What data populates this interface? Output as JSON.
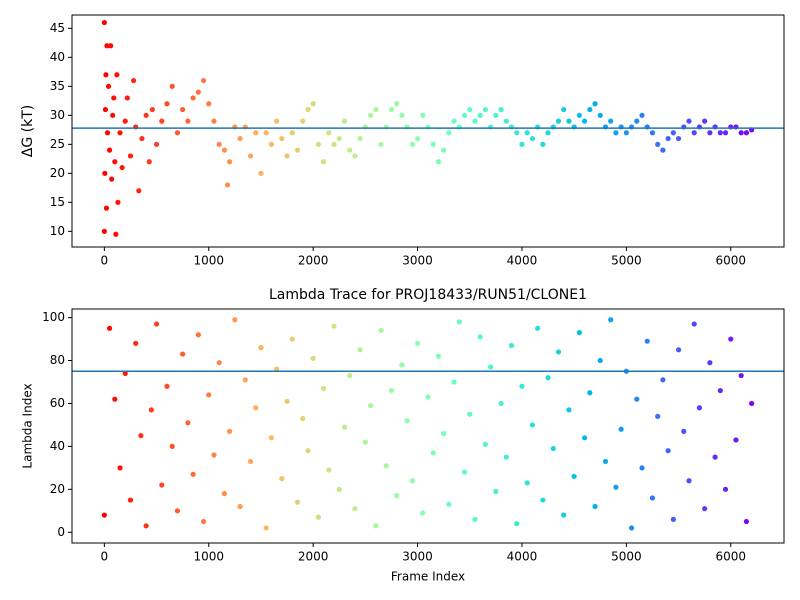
{
  "chart_data": [
    {
      "type": "scatter",
      "ylabel": "ΔG (kT)",
      "colormap": "rainbow_r",
      "hline": 27.8,
      "hline_color": "#1f77b4",
      "xlim": [
        -310,
        6510
      ],
      "ylim": [
        7.3,
        47.3
      ],
      "xticks": [
        0,
        1000,
        2000,
        3000,
        4000,
        5000,
        6000
      ],
      "yticks": [
        10,
        15,
        20,
        25,
        30,
        35,
        40,
        45
      ],
      "x": [
        0,
        0,
        5,
        10,
        15,
        20,
        25,
        30,
        40,
        50,
        60,
        70,
        80,
        90,
        100,
        110,
        120,
        130,
        150,
        170,
        200,
        220,
        250,
        280,
        300,
        330,
        360,
        400,
        430,
        460,
        500,
        550,
        600,
        650,
        700,
        750,
        800,
        850,
        900,
        950,
        1000,
        1050,
        1100,
        1150,
        1180,
        1200,
        1250,
        1300,
        1350,
        1400,
        1450,
        1500,
        1550,
        1600,
        1650,
        1700,
        1750,
        1800,
        1850,
        1900,
        1950,
        2000,
        2050,
        2100,
        2150,
        2200,
        2250,
        2300,
        2350,
        2400,
        2450,
        2500,
        2550,
        2600,
        2650,
        2700,
        2750,
        2800,
        2850,
        2900,
        2950,
        3000,
        3050,
        3100,
        3150,
        3200,
        3250,
        3300,
        3350,
        3400,
        3450,
        3500,
        3550,
        3600,
        3650,
        3700,
        3750,
        3800,
        3850,
        3900,
        3950,
        4000,
        4050,
        4100,
        4150,
        4200,
        4250,
        4300,
        4350,
        4400,
        4450,
        4500,
        4550,
        4600,
        4650,
        4700,
        4750,
        4800,
        4850,
        4900,
        4950,
        5000,
        5050,
        5100,
        5150,
        5200,
        5250,
        5300,
        5350,
        5400,
        5450,
        5500,
        5550,
        5600,
        5650,
        5700,
        5750,
        5800,
        5850,
        5900,
        5950,
        6000,
        6050,
        6100,
        6150,
        6200
      ],
      "values": [
        46,
        10,
        20,
        31,
        37,
        14,
        42,
        27,
        35,
        24,
        42,
        19,
        30,
        33,
        22,
        9.5,
        37,
        15,
        27,
        21,
        29,
        33,
        23,
        36,
        28,
        17,
        26,
        30,
        22,
        31,
        25,
        29,
        32,
        35,
        27,
        31,
        29,
        33,
        34,
        36,
        32,
        29,
        25,
        24,
        18,
        22,
        28,
        26,
        28,
        23,
        27,
        20,
        27,
        25,
        29,
        26,
        23,
        27,
        24,
        29,
        31,
        32,
        25,
        22,
        27,
        25,
        26,
        29,
        24,
        23,
        26,
        28,
        30,
        31,
        25,
        28,
        31,
        32,
        30,
        28,
        25,
        26,
        30,
        28,
        25,
        22,
        24,
        27,
        29,
        28,
        30,
        31,
        29,
        30,
        31,
        28,
        30,
        31,
        29,
        28,
        27,
        25,
        27,
        26,
        28,
        25,
        27,
        28,
        29,
        31,
        29,
        28,
        30,
        29,
        31,
        32,
        30,
        28,
        29,
        27,
        28,
        27,
        28,
        29,
        30,
        28,
        27,
        25,
        24,
        26,
        27,
        26,
        28,
        29,
        27,
        28,
        29,
        27,
        28,
        27,
        27,
        28,
        28,
        27,
        27,
        27.5
      ]
    },
    {
      "type": "scatter",
      "title": "Lambda Trace for PROJ18433/RUN51/CLONE1",
      "xlabel": "Frame Index",
      "ylabel": "Lambda Index",
      "colormap": "rainbow_r",
      "hline": 75,
      "hline_color": "#1f77b4",
      "xlim": [
        -310,
        6510
      ],
      "ylim": [
        -5,
        104
      ],
      "xticks": [
        0,
        1000,
        2000,
        3000,
        4000,
        5000,
        6000
      ],
      "yticks": [
        0,
        20,
        40,
        60,
        80,
        100
      ],
      "x": [
        0,
        50,
        100,
        150,
        200,
        250,
        300,
        350,
        400,
        450,
        500,
        550,
        600,
        650,
        700,
        750,
        800,
        850,
        900,
        950,
        1000,
        1050,
        1100,
        1150,
        1200,
        1250,
        1300,
        1350,
        1400,
        1450,
        1500,
        1550,
        1600,
        1650,
        1700,
        1750,
        1800,
        1850,
        1900,
        1950,
        2000,
        2050,
        2100,
        2150,
        2200,
        2250,
        2300,
        2350,
        2400,
        2450,
        2500,
        2550,
        2600,
        2650,
        2700,
        2750,
        2800,
        2850,
        2900,
        2950,
        3000,
        3050,
        3100,
        3150,
        3200,
        3250,
        3300,
        3350,
        3400,
        3450,
        3500,
        3550,
        3600,
        3650,
        3700,
        3750,
        3800,
        3850,
        3900,
        3950,
        4000,
        4050,
        4100,
        4150,
        4200,
        4250,
        4300,
        4350,
        4400,
        4450,
        4500,
        4550,
        4600,
        4650,
        4700,
        4750,
        4800,
        4850,
        4900,
        4950,
        5000,
        5050,
        5100,
        5150,
        5200,
        5250,
        5300,
        5350,
        5400,
        5450,
        5500,
        5550,
        5600,
        5650,
        5700,
        5750,
        5800,
        5850,
        5900,
        5950,
        6000,
        6050,
        6100,
        6150,
        6200
      ],
      "values": [
        8,
        95,
        62,
        30,
        74,
        15,
        88,
        45,
        3,
        57,
        97,
        22,
        68,
        40,
        10,
        83,
        51,
        27,
        92,
        5,
        64,
        36,
        79,
        18,
        47,
        99,
        12,
        71,
        33,
        58,
        86,
        2,
        44,
        76,
        25,
        61,
        90,
        14,
        53,
        38,
        81,
        7,
        67,
        29,
        96,
        20,
        49,
        73,
        11,
        85,
        42,
        59,
        3,
        94,
        31,
        66,
        17,
        78,
        52,
        24,
        88,
        9,
        63,
        37,
        82,
        46,
        13,
        70,
        98,
        28,
        55,
        6,
        91,
        41,
        77,
        19,
        60,
        35,
        87,
        4,
        68,
        23,
        50,
        95,
        15,
        72,
        39,
        84,
        8,
        57,
        26,
        93,
        44,
        65,
        12,
        80,
        33,
        99,
        21,
        48,
        75,
        2,
        62,
        30,
        89,
        16,
        54,
        71,
        38,
        6,
        85,
        47,
        24,
        97,
        58,
        11,
        79,
        35,
        66,
        20,
        90,
        43,
        73,
        5,
        60
      ]
    }
  ]
}
